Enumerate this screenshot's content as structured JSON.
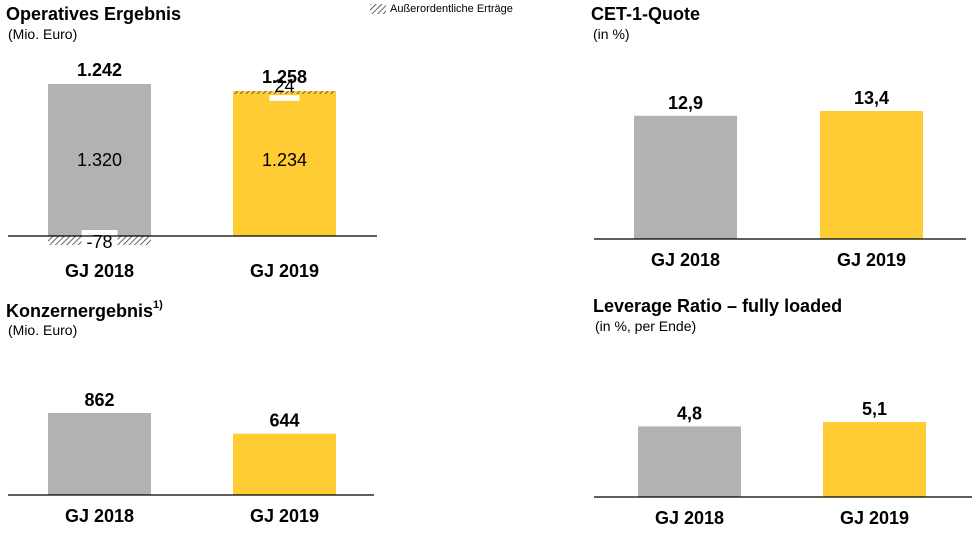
{
  "colors": {
    "gray": "#b2b2b2",
    "yellow": "#ffcc33",
    "axis": "#000000"
  },
  "legend": {
    "hatch_label": "Außerordentliche Erträge",
    "icon": "hatch-swatch"
  },
  "chart_data": [
    {
      "id": "operatives",
      "type": "bar",
      "title": "Operatives Ergebnis",
      "subtitle": "(Mio. Euro)",
      "categories": [
        "GJ 2018",
        "GJ 2019"
      ],
      "totals": [
        "1.242",
        "1.258"
      ],
      "values": [
        1242,
        1258
      ],
      "series": [
        {
          "values": [
            1320,
            1234
          ],
          "labels": [
            "1.320",
            "1.234"
          ]
        },
        {
          "name": "Außerordentliche Erträge",
          "values": [
            -78,
            24
          ],
          "labels": [
            "-78",
            "24"
          ]
        }
      ]
    },
    {
      "id": "cet1",
      "type": "bar",
      "title": "CET-1-Quote",
      "subtitle": "(in %)",
      "categories": [
        "GJ 2018",
        "GJ 2019"
      ],
      "values": [
        12.9,
        13.4
      ],
      "labels": [
        "12,9",
        "13,4"
      ]
    },
    {
      "id": "konzern",
      "type": "bar",
      "title": "Konzernergebnis",
      "title_sup": "1)",
      "subtitle": "(Mio. Euro)",
      "categories": [
        "GJ 2018",
        "GJ 2019"
      ],
      "values": [
        862,
        644
      ],
      "labels": [
        "862",
        "644"
      ]
    },
    {
      "id": "leverage",
      "type": "bar",
      "title": "Leverage Ratio – fully loaded",
      "subtitle": "(in %, per Ende)",
      "categories": [
        "GJ 2018",
        "GJ 2019"
      ],
      "values": [
        4.8,
        5.1
      ],
      "labels": [
        "4,8",
        "5,1"
      ]
    }
  ]
}
